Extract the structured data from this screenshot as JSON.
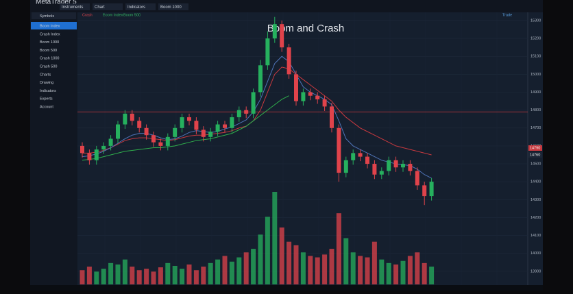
{
  "app": {
    "title": "MetaTrader 5"
  },
  "toolbar": [
    "Instruments",
    "Chart",
    "Indicators",
    "Boom 1000"
  ],
  "tabs": [
    "Crash",
    "Boom Index",
    "Boom 500"
  ],
  "top_right": [
    "Trade"
  ],
  "sidebar": {
    "header": "Symbols",
    "items": [
      "Boom Index",
      "Crash Index",
      "Boom 1000",
      "Boom 500",
      "Crash 1000",
      "Crash 500",
      "Charts",
      "Drawing",
      "Indicators",
      "Experts",
      "Account"
    ]
  },
  "chart_data": {
    "type": "candlestick",
    "title": "Boom and Crash",
    "open": [
      14600,
      14560,
      14520,
      14580,
      14600,
      14640,
      14720,
      14780,
      14740,
      14700,
      14660,
      14620,
      14600,
      14650,
      14700,
      14760,
      14740,
      14690,
      14650,
      14680,
      14720,
      14700,
      14760,
      14800,
      14780,
      14900,
      15050,
      15200,
      15280,
      15150,
      15000,
      14850,
      14900,
      14880,
      14860,
      14820,
      14700,
      14450,
      14520,
      14560,
      14540,
      14500,
      14440,
      14460,
      14520,
      14480,
      14500,
      14460,
      14380,
      14320
    ],
    "high": [
      14620,
      14580,
      14600,
      14620,
      14660,
      14740,
      14800,
      14800,
      14760,
      14720,
      14680,
      14640,
      14670,
      14720,
      14780,
      14780,
      14760,
      14710,
      14700,
      14740,
      14740,
      14780,
      14820,
      14820,
      14920,
      15080,
      15240,
      15320,
      15300,
      15170,
      15020,
      14920,
      14920,
      14900,
      14880,
      14840,
      14720,
      14540,
      14580,
      14580,
      14560,
      14520,
      14480,
      14540,
      14540,
      14520,
      14520,
      14480,
      14400,
      14420
    ],
    "low": [
      14535,
      14495,
      14495,
      14555,
      14575,
      14615,
      14695,
      14715,
      14675,
      14635,
      14595,
      14575,
      14575,
      14625,
      14675,
      14715,
      14665,
      14625,
      14625,
      14655,
      14675,
      14675,
      14735,
      14755,
      14755,
      14875,
      15025,
      15175,
      15125,
      14975,
      14825,
      14825,
      14855,
      14835,
      14795,
      14675,
      14400,
      14425,
      14495,
      14515,
      14475,
      14415,
      14415,
      14435,
      14455,
      14455,
      14435,
      14355,
      14270,
      14295
    ],
    "close": [
      14560,
      14520,
      14580,
      14600,
      14640,
      14720,
      14780,
      14740,
      14700,
      14660,
      14620,
      14600,
      14650,
      14700,
      14760,
      14740,
      14690,
      14650,
      14680,
      14720,
      14700,
      14760,
      14800,
      14780,
      14900,
      15050,
      15200,
      15280,
      15150,
      15000,
      14850,
      14900,
      14880,
      14860,
      14820,
      14700,
      14450,
      14520,
      14560,
      14540,
      14500,
      14440,
      14460,
      14520,
      14480,
      14500,
      14460,
      14380,
      14320,
      14400
    ],
    "volume": [
      20,
      25,
      18,
      22,
      30,
      28,
      35,
      25,
      20,
      22,
      18,
      24,
      30,
      26,
      22,
      28,
      20,
      25,
      30,
      35,
      40,
      32,
      38,
      45,
      50,
      70,
      95,
      130,
      80,
      60,
      55,
      45,
      40,
      38,
      42,
      50,
      100,
      65,
      45,
      40,
      38,
      60,
      35,
      30,
      28,
      33,
      40,
      45,
      30,
      25
    ],
    "up_color": "#26b05e",
    "down_color": "#e0434b",
    "series": [
      {
        "color": "#c8393f",
        "values": [
          14560,
          14560,
          14565,
          14575,
          14590,
          14610,
          14630,
          14640,
          14645,
          14645,
          14640,
          14635,
          14630,
          14635,
          14645,
          14655,
          14660,
          14660,
          14665,
          14670,
          14675,
          14685,
          14700,
          14710,
          14740,
          14800,
          14900,
          15000,
          15040,
          15030,
          15000,
          14970,
          14940,
          14910,
          14880,
          14850,
          14800,
          14760,
          14730,
          14700,
          14680,
          14660,
          14640,
          14620,
          14600,
          14590,
          14580,
          14570,
          14560,
          14550
        ]
      },
      {
        "color": "#4f74b8",
        "values": [
          14540,
          14545,
          14555,
          14570,
          14590,
          14615,
          14640,
          14660,
          14670,
          14670,
          14660,
          14645,
          14635,
          14640,
          14655,
          14675,
          14685,
          14680,
          14675,
          14680,
          14695,
          14705,
          14725,
          14745,
          14790,
          14860,
          14960,
          15060,
          15100,
          15070,
          15000,
          14930,
          14900,
          14880,
          14860,
          14830,
          14740,
          14640,
          14600,
          14580,
          14560,
          14540,
          14520,
          14510,
          14500,
          14495,
          14490,
          14470,
          14440,
          14420
        ]
      },
      {
        "color": "#2fae4c",
        "values": [
          14520,
          14525,
          14530,
          14540,
          14550,
          14560,
          14570,
          14575,
          14580,
          14585,
          14590,
          14590,
          14595,
          14600,
          14610,
          14620,
          14630,
          14635,
          14640,
          14650,
          14660,
          14670,
          14690,
          14710,
          14740,
          14770,
          14800,
          14830,
          14860,
          14880,
          null,
          null,
          null,
          null,
          null,
          null,
          null,
          null,
          null,
          null,
          null,
          null,
          null,
          null,
          null,
          null,
          null,
          null,
          null,
          null
        ]
      }
    ],
    "price_lines": [
      {
        "value": 14790,
        "color": "#c8393f"
      }
    ],
    "price_labels": [
      14790,
      14760
    ],
    "ylim": [
      13846,
      15338
    ],
    "yticks": [
      15300,
      15200,
      15100,
      15000,
      14900,
      14800,
      14700,
      14600,
      14500,
      14400,
      14300,
      14200,
      14100,
      14000,
      13900
    ],
    "grid": true
  }
}
